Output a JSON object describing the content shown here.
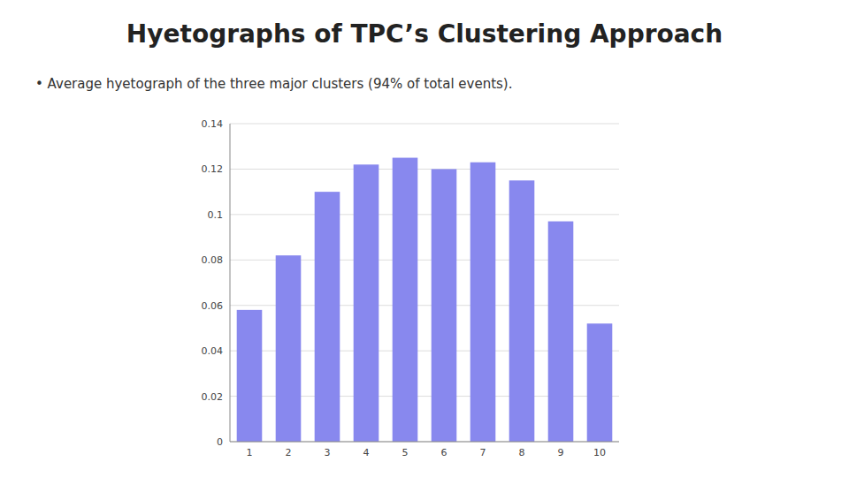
{
  "chart_data": {
    "type": "bar",
    "title": "Hyetographs of TPC’s Clustering Approach",
    "subtitle": "• Average hyetograph of the three major clusters (94% of total events).",
    "categories": [
      1,
      2,
      3,
      4,
      5,
      6,
      7,
      8,
      9,
      10
    ],
    "values": [
      0.058,
      0.082,
      0.11,
      0.122,
      0.125,
      0.12,
      0.123,
      0.115,
      0.097,
      0.052
    ],
    "color": "#8888EE",
    "ylim": [
      0,
      0.14
    ],
    "yticks": [
      0,
      0.02,
      0.04,
      0.06,
      0.08,
      0.1,
      0.12,
      0.14
    ],
    "grid": true
  }
}
